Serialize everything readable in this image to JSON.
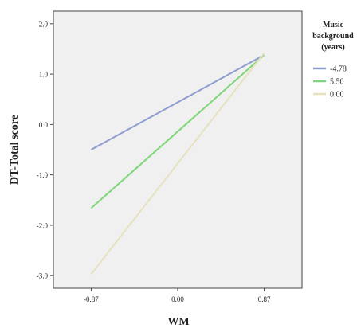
{
  "chart_data": {
    "type": "line",
    "title": "",
    "xlabel": "WM",
    "ylabel": "DT-Total score",
    "x": [
      -0.87,
      0.87
    ],
    "x_ticks": [
      "-0.87",
      "0.00",
      "0.87"
    ],
    "x_tick_values": [
      -0.87,
      0.0,
      0.87
    ],
    "y_ticks": [
      "2.0",
      "1.0",
      "0.0",
      "-1.0",
      "-2.0",
      "-3.0"
    ],
    "y_tick_values": [
      2.0,
      1.0,
      0.0,
      -1.0,
      -2.0,
      -3.0
    ],
    "xlim": [
      -1.25,
      1.25
    ],
    "ylim": [
      -3.25,
      2.25
    ],
    "grid": false,
    "background": "#f0f0f0",
    "legend_title": [
      "Music",
      "background",
      "(years)"
    ],
    "legend_position": "right",
    "series": [
      {
        "name": "-4.78",
        "values": [
          -0.5,
          1.38
        ],
        "color": "#8f9ccf"
      },
      {
        "name": "5.50",
        "values": [
          -1.66,
          1.38
        ],
        "color": "#7fd67a"
      },
      {
        "name": "0.00",
        "values": [
          -2.97,
          1.42
        ],
        "color": "#e6e2bd"
      }
    ]
  }
}
